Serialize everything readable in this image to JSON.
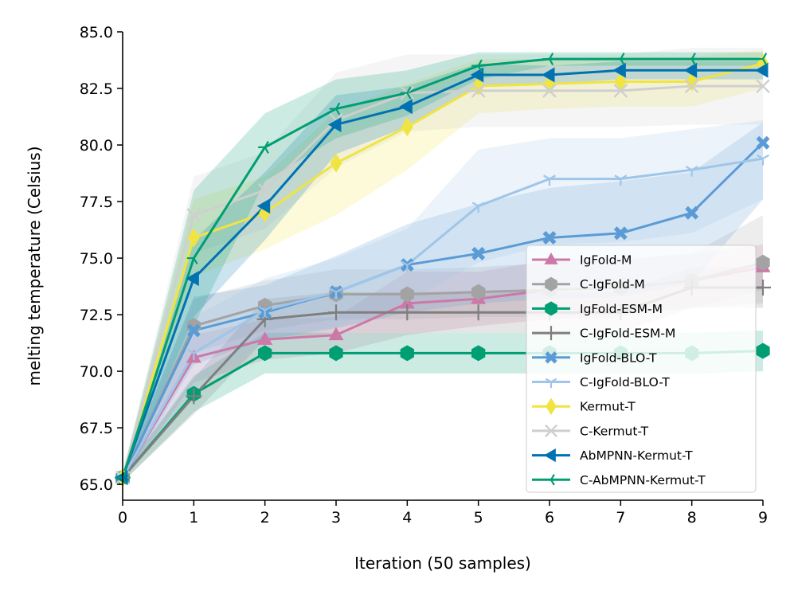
{
  "chart_data": {
    "type": "line",
    "xlabel": "Iteration (50 samples)",
    "ylabel": "melting temperature (Celsius)",
    "xlim": [
      0,
      9
    ],
    "ylim": [
      64.3,
      85.0
    ],
    "x_ticks": [
      0,
      1,
      2,
      3,
      4,
      5,
      6,
      7,
      8,
      9
    ],
    "y_ticks": [
      65.0,
      67.5,
      70.0,
      72.5,
      75.0,
      77.5,
      80.0,
      82.5,
      85.0
    ],
    "x_tick_labels": [
      "0",
      "1",
      "2",
      "3",
      "4",
      "5",
      "6",
      "7",
      "8",
      "9"
    ],
    "y_tick_labels": [
      "65.0",
      "67.5",
      "70.0",
      "72.5",
      "75.0",
      "77.5",
      "80.0",
      "82.5",
      "85.0"
    ],
    "legend_position": "lower-right",
    "x": [
      0,
      1,
      2,
      3,
      4,
      5,
      6,
      7,
      8,
      9
    ],
    "series": [
      {
        "name": "IgFold-M",
        "color": "#cc79a7",
        "marker": "triangle-up",
        "values": [
          65.3,
          70.6,
          71.4,
          71.6,
          73.0,
          73.2,
          73.6,
          73.7,
          74.0,
          74.6
        ],
        "lower": [
          65.1,
          69.5,
          70.5,
          70.8,
          71.6,
          72.0,
          72.3,
          72.4,
          72.8,
          73.6
        ],
        "upper": [
          65.5,
          71.6,
          72.3,
          72.4,
          74.4,
          74.4,
          74.9,
          75.0,
          75.2,
          75.6
        ]
      },
      {
        "name": "C-IgFold-M",
        "color": "#a3a3a3",
        "marker": "hexagon",
        "values": [
          65.3,
          72.0,
          72.9,
          73.4,
          73.4,
          73.5,
          73.6,
          73.7,
          74.0,
          74.8
        ],
        "lower": [
          65.1,
          70.8,
          71.8,
          72.3,
          72.3,
          72.4,
          72.4,
          72.5,
          72.8,
          73.0
        ],
        "upper": [
          65.5,
          73.2,
          74.0,
          74.5,
          74.5,
          74.6,
          74.8,
          74.9,
          75.2,
          76.9
        ]
      },
      {
        "name": "IgFold-ESM-M",
        "color": "#009e73",
        "marker": "hexagon",
        "values": [
          65.3,
          69.0,
          70.8,
          70.8,
          70.8,
          70.8,
          70.8,
          70.8,
          70.8,
          70.9
        ],
        "lower": [
          65.1,
          68.2,
          69.9,
          69.9,
          69.9,
          69.9,
          69.9,
          69.9,
          69.9,
          70.0
        ],
        "upper": [
          65.5,
          69.8,
          71.7,
          71.7,
          71.7,
          71.7,
          71.7,
          71.7,
          71.7,
          71.8
        ]
      },
      {
        "name": "C-IgFold-ESM-M",
        "color": "#7f7f7f",
        "marker": "plus",
        "values": [
          65.3,
          68.9,
          72.3,
          72.6,
          72.6,
          72.6,
          72.6,
          72.6,
          73.7,
          73.7
        ],
        "lower": [
          65.1,
          68.1,
          71.4,
          71.7,
          71.7,
          71.7,
          71.7,
          71.7,
          72.8,
          72.8
        ],
        "upper": [
          65.5,
          69.7,
          73.2,
          73.5,
          73.5,
          73.5,
          73.5,
          73.5,
          74.6,
          74.6
        ]
      },
      {
        "name": "IgFold-BLO-T",
        "color": "#5b9bd5",
        "marker": "x-filled",
        "values": [
          65.3,
          71.8,
          72.6,
          73.5,
          74.7,
          75.2,
          75.9,
          76.1,
          77.0,
          80.1
        ],
        "lower": [
          65.1,
          70.3,
          71.4,
          71.9,
          72.6,
          73.0,
          73.2,
          73.3,
          73.9,
          77.6
        ],
        "upper": [
          65.5,
          73.3,
          73.8,
          75.1,
          76.5,
          77.4,
          78.1,
          78.4,
          78.8,
          81.0
        ]
      },
      {
        "name": "C-IgFold-BLO-T",
        "color": "#9fc5e8",
        "marker": "tri-down",
        "values": [
          65.3,
          70.8,
          72.7,
          73.5,
          74.7,
          77.3,
          78.5,
          78.5,
          78.9,
          79.4
        ],
        "lower": [
          65.1,
          69.2,
          71.3,
          72.0,
          73.1,
          74.8,
          75.6,
          75.7,
          76.1,
          77.6
        ],
        "upper": [
          65.5,
          72.4,
          74.1,
          75.0,
          76.3,
          79.8,
          80.3,
          80.3,
          80.7,
          81.1
        ]
      },
      {
        "name": "Kermut-T",
        "color": "#f0e442",
        "marker": "thin-diamond",
        "values": [
          65.3,
          75.9,
          77.0,
          79.2,
          80.8,
          82.6,
          82.7,
          82.8,
          82.8,
          83.6
        ],
        "lower": [
          65.1,
          74.2,
          75.4,
          76.9,
          78.9,
          81.4,
          81.6,
          81.7,
          81.7,
          82.5
        ],
        "upper": [
          65.5,
          77.6,
          78.6,
          81.5,
          82.7,
          83.8,
          83.8,
          83.9,
          83.9,
          84.2
        ]
      },
      {
        "name": "C-Kermut-T",
        "color": "#cfcfcf",
        "marker": "x",
        "values": [
          65.3,
          76.9,
          78.0,
          81.1,
          82.3,
          82.4,
          82.4,
          82.4,
          82.6,
          82.6
        ],
        "lower": [
          65.1,
          75.2,
          76.3,
          79.0,
          80.6,
          80.8,
          80.8,
          80.8,
          80.9,
          80.9
        ],
        "upper": [
          65.5,
          78.6,
          79.7,
          83.2,
          84.0,
          84.0,
          84.0,
          84.0,
          84.3,
          84.3
        ]
      },
      {
        "name": "AbMPNN-Kermut-T",
        "color": "#0072b2",
        "marker": "triangle-left",
        "values": [
          65.3,
          74.1,
          77.3,
          80.9,
          81.7,
          83.1,
          83.1,
          83.3,
          83.3,
          83.3
        ],
        "lower": [
          65.1,
          72.4,
          75.8,
          79.6,
          80.8,
          82.6,
          82.7,
          82.9,
          82.9,
          82.9
        ],
        "upper": [
          65.5,
          75.8,
          78.8,
          82.2,
          82.6,
          83.6,
          83.5,
          83.7,
          83.7,
          83.7
        ]
      },
      {
        "name": "C-AbMPNN-Kermut-T",
        "color": "#009e73",
        "marker": "tri-left",
        "values": [
          65.3,
          75.0,
          79.9,
          81.6,
          82.3,
          83.5,
          83.8,
          83.8,
          83.8,
          83.8
        ],
        "lower": [
          65.1,
          72.0,
          78.4,
          80.3,
          81.3,
          82.9,
          83.5,
          83.5,
          83.5,
          83.5
        ],
        "upper": [
          65.5,
          78.0,
          81.4,
          82.9,
          83.3,
          84.1,
          84.1,
          84.1,
          84.1,
          84.1
        ]
      }
    ]
  }
}
